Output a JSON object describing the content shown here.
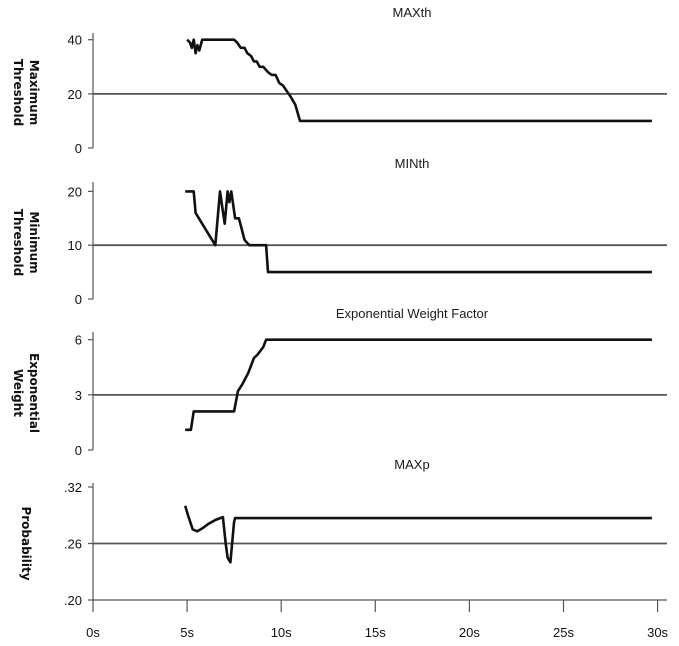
{
  "chart_data": {
    "type": "line",
    "x_tick_labels": [
      "0s",
      "5s",
      "10s",
      "15s",
      "20s",
      "25s",
      "30s"
    ],
    "x_ticks": [
      0,
      5,
      10,
      15,
      20,
      25,
      30
    ],
    "xlim": [
      0,
      30.5
    ],
    "panels": [
      {
        "title": "MAXth",
        "ylabel": [
          "Maximum",
          "Threshold"
        ],
        "y_ticks": [
          0,
          20,
          40
        ],
        "y_tick_labels": [
          "0",
          "20",
          "40"
        ],
        "ylim": [
          0,
          41
        ],
        "reference_line": 20,
        "series": {
          "x": [
            5.0,
            5.15,
            5.25,
            5.35,
            5.45,
            5.55,
            5.65,
            5.8,
            7.5,
            7.65,
            7.85,
            8.05,
            8.2,
            8.4,
            8.55,
            8.7,
            8.85,
            9.05,
            9.3,
            9.5,
            9.7,
            9.9,
            10.1,
            10.3,
            10.5,
            10.75,
            11.0,
            29.7
          ],
          "y": [
            40,
            39,
            37,
            40,
            35,
            38,
            36,
            40,
            40,
            39,
            37,
            37,
            35,
            34,
            32,
            32,
            30,
            30,
            28,
            27,
            27,
            24,
            23,
            21,
            19,
            16,
            10,
            10
          ]
        }
      },
      {
        "title": "MINth",
        "ylabel": [
          "Minimum",
          "Threshold"
        ],
        "y_ticks": [
          0,
          10,
          20
        ],
        "y_tick_labels": [
          "0",
          "10",
          "20"
        ],
        "ylim": [
          0,
          21
        ],
        "reference_line": 10,
        "series": {
          "x": [
            4.9,
            5.35,
            5.45,
            6.5,
            6.75,
            7.0,
            7.15,
            7.25,
            7.35,
            7.55,
            7.75,
            7.9,
            8.05,
            8.3,
            8.45,
            8.7,
            9.2,
            9.3,
            29.7
          ],
          "y": [
            20,
            20,
            16,
            10,
            20,
            14,
            20,
            18,
            20,
            15,
            15,
            13,
            11,
            10,
            10,
            10,
            10,
            5,
            5
          ]
        }
      },
      {
        "title": "Exponential Weight  Factor",
        "ylabel": [
          "Exponential",
          "Weight"
        ],
        "y_ticks": [
          0,
          3,
          6
        ],
        "y_tick_labels": [
          "0",
          "3",
          "6"
        ],
        "ylim": [
          0,
          6.2
        ],
        "reference_line": 3,
        "series": {
          "x": [
            4.9,
            5.2,
            5.35,
            7.5,
            7.7,
            7.95,
            8.25,
            8.55,
            8.75,
            9.05,
            9.2,
            29.7
          ],
          "y": [
            1.1,
            1.1,
            2.1,
            2.1,
            3.2,
            3.6,
            4.2,
            5.0,
            5.2,
            5.6,
            6.0,
            6.0
          ]
        }
      },
      {
        "title": "MAXp",
        "ylabel": [
          "Probability"
        ],
        "y_ticks": [
          0.2,
          0.26,
          0.32
        ],
        "y_tick_labels": [
          ".20",
          ".26",
          ".32"
        ],
        "ylim": [
          0.2,
          0.32
        ],
        "reference_line": 0.26,
        "series": {
          "x": [
            4.9,
            5.05,
            5.3,
            5.55,
            5.8,
            6.15,
            6.5,
            6.9,
            7.05,
            7.15,
            7.3,
            7.5,
            7.55,
            29.7
          ],
          "y": [
            0.3,
            0.29,
            0.275,
            0.273,
            0.276,
            0.281,
            0.285,
            0.288,
            0.26,
            0.245,
            0.24,
            0.283,
            0.287,
            0.287
          ]
        }
      }
    ]
  }
}
